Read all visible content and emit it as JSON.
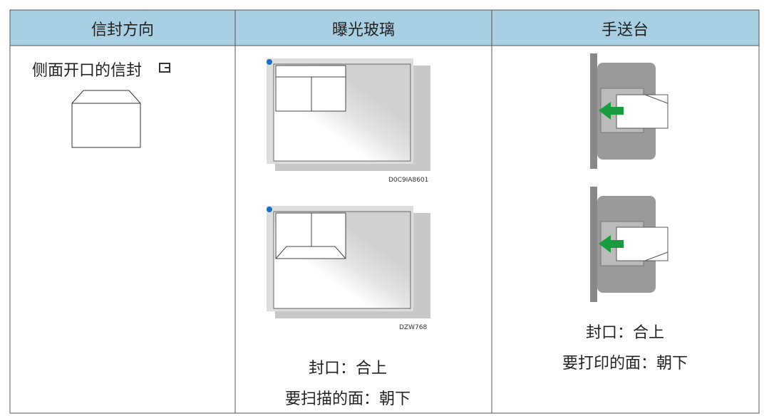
{
  "table": {
    "headers": [
      "信封方向",
      "曝光玻璃",
      "手送台"
    ],
    "envelope_type": "侧面开口的信封",
    "glass_figure_codes": [
      "D0C9IA8601",
      "DZW768"
    ],
    "glass_notes": [
      "封口：合上",
      "要扫描的面：朝下"
    ],
    "bypass_notes": [
      "封口：合上",
      "要打印的面：朝下"
    ]
  }
}
